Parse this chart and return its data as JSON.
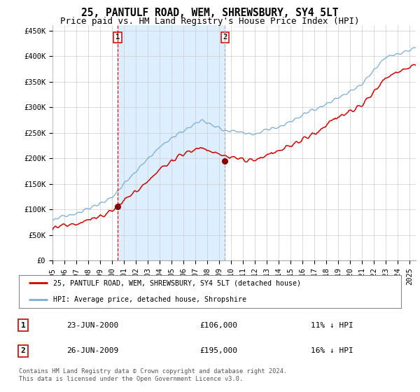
{
  "title": "25, PANTULF ROAD, WEM, SHREWSBURY, SY4 5LT",
  "subtitle": "Price paid vs. HM Land Registry's House Price Index (HPI)",
  "ylabel_ticks": [
    "£0",
    "£50K",
    "£100K",
    "£150K",
    "£200K",
    "£250K",
    "£300K",
    "£350K",
    "£400K",
    "£450K"
  ],
  "ytick_values": [
    0,
    50000,
    100000,
    150000,
    200000,
    250000,
    300000,
    350000,
    400000,
    450000
  ],
  "ylim": [
    0,
    460000
  ],
  "xlim_start": 1995.0,
  "xlim_end": 2025.5,
  "sale1_date": 2000.478,
  "sale1_price": 106000,
  "sale1_label": "1",
  "sale2_date": 2009.478,
  "sale2_price": 195000,
  "sale2_label": "2",
  "line_color_red": "#cc0000",
  "line_color_blue": "#7aadd4",
  "shade_color": "#ddeeff",
  "vline1_color": "#cc0000",
  "vline2_color": "#aaaaaa",
  "background_color": "#ffffff",
  "plot_bg_color": "#ffffff",
  "grid_color": "#cccccc",
  "legend_label_red": "25, PANTULF ROAD, WEM, SHREWSBURY, SY4 5LT (detached house)",
  "legend_label_blue": "HPI: Average price, detached house, Shropshire",
  "table_row1": [
    "1",
    "23-JUN-2000",
    "£106,000",
    "11% ↓ HPI"
  ],
  "table_row2": [
    "2",
    "26-JUN-2009",
    "£195,000",
    "16% ↓ HPI"
  ],
  "footnote": "Contains HM Land Registry data © Crown copyright and database right 2024.\nThis data is licensed under the Open Government Licence v3.0.",
  "title_fontsize": 10.5,
  "subtitle_fontsize": 9,
  "tick_fontsize": 7.5
}
